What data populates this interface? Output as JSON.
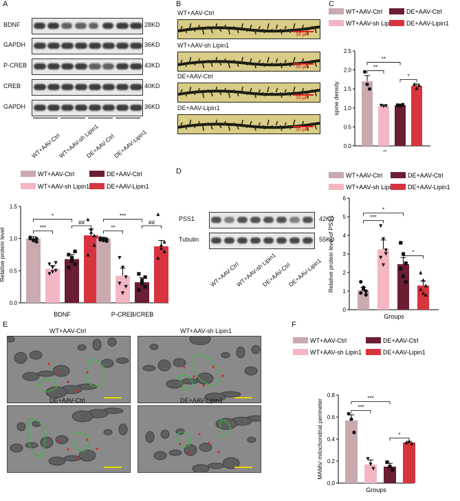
{
  "panels": {
    "A": "A",
    "B": "B",
    "C": "C",
    "D": "D",
    "E": "E",
    "F": "F"
  },
  "colors": {
    "wt_ctrl": "#c9aaaf",
    "wt_sh": "#f4b6c2",
    "de_ctrl": "#6b1d31",
    "de_lipin": "#d8343f"
  },
  "groups": [
    "WT+AAV-Ctrl",
    "WT+AAV-sh Lipin1",
    "DE+AAV-Ctrl",
    "DE+AAV-Lipin1"
  ],
  "panelA": {
    "blots": [
      {
        "label": "BDNF",
        "kd": "28KD"
      },
      {
        "label": "GAPDH",
        "kd": "36KD"
      },
      {
        "label": "P-CREB",
        "kd": "43KD"
      },
      {
        "label": "CREB",
        "kd": "40KD"
      },
      {
        "label": "GAPDH",
        "kd": "36KD"
      }
    ],
    "lanes": [
      "WT+AAV-Ctrl",
      "WT+AAV-sh Lipin1",
      "DE+AAV-Ctrl",
      "DE+AAV-Lipin1"
    ]
  },
  "panelB": {
    "images": [
      {
        "title": "WT+AAV-Ctrl",
        "scale": "10 μm"
      },
      {
        "title": "WT+AAV-sh Lipin1",
        "scale": "10 μm"
      },
      {
        "title": "DE+AAV-Ctrl",
        "scale": "10 μm"
      },
      {
        "title": "DE+AAV-Lipin1",
        "scale": "10 μm"
      }
    ]
  },
  "panelD": {
    "blots": [
      {
        "label": "PSS1",
        "kd": "42KD"
      },
      {
        "label": "Tubulin",
        "kd": "55KD"
      }
    ],
    "lanes": [
      "WT+AAV-Ctrl",
      "WT+AAV-sh Lipin1",
      "DE+AAV-Ctrl",
      "DE+AAV-Lipin1"
    ]
  },
  "panelE": {
    "images": [
      {
        "title": "WT+AAV-Ctrl"
      },
      {
        "title": "WT+AAV-sh Lipin1"
      },
      {
        "title": "DE+AAV-Ctrl"
      },
      {
        "title": "DE+AAV-Lipin1"
      }
    ]
  },
  "chart_data": [
    {
      "id": "A-bar",
      "type": "bar",
      "categories": [
        "BDNF",
        "P-CREB/CREB"
      ],
      "series": [
        {
          "name": "WT+AAV-Ctrl",
          "values": [
            1.0,
            1.0
          ],
          "errors": [
            0.03,
            0.02
          ],
          "points": [
            [
              1.02,
              0.98,
              0.95,
              1.0,
              0.97,
              1.0
            ],
            [
              0.98,
              1.0,
              0.96,
              1.01,
              0.97,
              0.99
            ]
          ]
        },
        {
          "name": "WT+AAV-sh Lipin1",
          "values": [
            0.53,
            0.42
          ],
          "errors": [
            0.05,
            0.12
          ],
          "points": [
            [
              0.6,
              0.55,
              0.5,
              0.45,
              0.48,
              0.62
            ],
            [
              0.7,
              0.55,
              0.4,
              0.3,
              0.15,
              0.25
            ]
          ]
        },
        {
          "name": "DE+AAV-Ctrl",
          "values": [
            0.68,
            0.32
          ],
          "errors": [
            0.07,
            0.07
          ],
          "points": [
            [
              0.75,
              0.65,
              0.6,
              0.55,
              0.7,
              0.8
            ],
            [
              0.45,
              0.35,
              0.25,
              0.2,
              0.3,
              0.4
            ]
          ]
        },
        {
          "name": "DE+AAV-Lipin1",
          "values": [
            1.05,
            0.88
          ],
          "errors": [
            0.1,
            0.09
          ],
          "points": [
            [
              1.3,
              1.15,
              0.9,
              0.75,
              1.1,
              1.05
            ],
            [
              1.38,
              0.9,
              0.8,
              0.7,
              0.85,
              0.95
            ]
          ]
        }
      ],
      "ylabel": "Relative protein level",
      "ylim": [
        0,
        1.5
      ],
      "yticks": [
        "0.0",
        "0.5",
        "1.0",
        "1.5"
      ],
      "sig": [
        {
          "cat": 0,
          "from": 0,
          "to": 1,
          "text": "***"
        },
        {
          "cat": 0,
          "from": 0,
          "to": 2,
          "text": "*"
        },
        {
          "cat": 0,
          "from": 2,
          "to": 3,
          "text": "##"
        },
        {
          "cat": 1,
          "from": 0,
          "to": 1,
          "text": "**"
        },
        {
          "cat": 1,
          "from": 0,
          "to": 2,
          "text": "***"
        },
        {
          "cat": 1,
          "from": 2,
          "to": 3,
          "text": "##"
        }
      ]
    },
    {
      "id": "C-bar",
      "type": "bar",
      "categories": [
        "WT+AAV-Ctrl",
        "WT+AAV-sh Lipin1",
        "DE+AAV-Ctrl",
        "DE+AAV-Lipin1"
      ],
      "values": [
        1.7,
        1.05,
        1.07,
        1.58
      ],
      "errors": [
        0.15,
        0.03,
        0.02,
        0.05
      ],
      "points": [
        [
          1.95,
          1.62,
          1.5
        ],
        [
          1.06,
          1.04,
          1.05
        ],
        [
          1.07,
          1.06,
          1.08
        ],
        [
          1.63,
          1.52,
          1.6
        ]
      ],
      "xlabel": "Groups",
      "ylabel": "spine density",
      "ylim": [
        0,
        2.5
      ],
      "yticks": [
        "0.0",
        "0.5",
        "1.0",
        "1.5",
        "2.0",
        "2.5"
      ],
      "sig": [
        {
          "from": 0,
          "to": 1,
          "text": "**"
        },
        {
          "from": 0,
          "to": 2,
          "text": "**"
        },
        {
          "from": 2,
          "to": 3,
          "text": "*"
        }
      ]
    },
    {
      "id": "D-bar",
      "type": "bar",
      "categories": [
        "WT+AAV-Ctrl",
        "WT+AAV-sh Lipin1",
        "DE+AAV-Ctrl",
        "DE+AAV-Lipin1"
      ],
      "values": [
        1.05,
        3.25,
        2.45,
        1.3
      ],
      "errors": [
        0.15,
        0.5,
        0.35,
        0.25
      ],
      "points": [
        [
          1.5,
          1.2,
          1.0,
          0.9,
          1.1,
          0.8
        ],
        [
          4.5,
          3.8,
          3.2,
          2.8,
          2.4,
          3.0
        ],
        [
          3.6,
          3.0,
          2.5,
          2.2,
          1.8,
          1.5
        ],
        [
          2.0,
          1.6,
          1.3,
          1.1,
          0.9,
          0.8
        ]
      ],
      "xlabel": "Groups",
      "ylabel": "Relative protein level of PSS1",
      "ylim": [
        0,
        6
      ],
      "yticks": [
        "0",
        "1",
        "2",
        "3",
        "4",
        "5",
        "6"
      ],
      "sig": [
        {
          "from": 0,
          "to": 1,
          "text": "***"
        },
        {
          "from": 0,
          "to": 2,
          "text": "*"
        },
        {
          "from": 2,
          "to": 3,
          "text": "*"
        }
      ]
    },
    {
      "id": "F-bar",
      "type": "bar",
      "categories": [
        "WT+AAV-Ctrl",
        "WT+AAV-sh Lipin1",
        "DE+AAV-Ctrl",
        "DE+AAV-Lipin1"
      ],
      "values": [
        0.57,
        0.17,
        0.15,
        0.37
      ],
      "errors": [
        0.05,
        0.04,
        0.03,
        0.01
      ],
      "points": [
        [
          0.63,
          0.58,
          0.46
        ],
        [
          0.22,
          0.17,
          0.13
        ],
        [
          0.19,
          0.15,
          0.12
        ],
        [
          0.37,
          0.38,
          0.36
        ]
      ],
      "xlabel": "Groups",
      "ylabel": "MAMs/ mitochondrial perimeter",
      "ylim": [
        0,
        0.8
      ],
      "yticks": [
        "0.0",
        "0.2",
        "0.4",
        "0.6",
        "0.8"
      ],
      "sig": [
        {
          "from": 0,
          "to": 1,
          "text": "***"
        },
        {
          "from": 0,
          "to": 2,
          "text": "***"
        },
        {
          "from": 2,
          "to": 3,
          "text": "*"
        }
      ]
    }
  ]
}
